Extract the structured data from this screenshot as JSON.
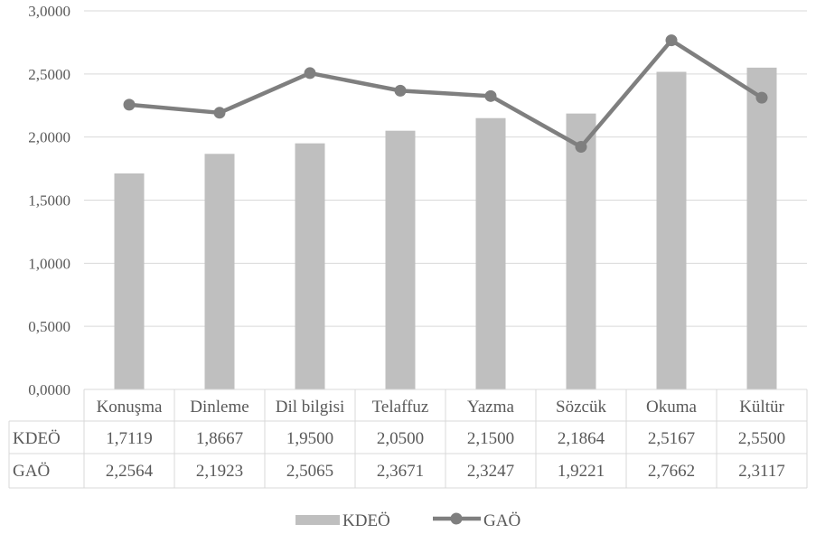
{
  "chart_data": {
    "type": "bar",
    "categories": [
      "Konuşma",
      "Dinleme",
      "Dil bilgisi",
      "Telaffuz",
      "Yazma",
      "Sözcük",
      "Okuma",
      "Kültür"
    ],
    "series": [
      {
        "name": "KDEÖ",
        "type": "bar",
        "color": "#bfbfbf",
        "values": [
          1.7119,
          1.8667,
          1.95,
          2.05,
          2.15,
          2.1864,
          2.5167,
          2.55
        ],
        "labels": [
          "1,7119",
          "1,8667",
          "1,9500",
          "2,0500",
          "2,1500",
          "2,1864",
          "2,5167",
          "2,5500"
        ]
      },
      {
        "name": "GAÖ",
        "type": "line",
        "color": "#7f7f7f",
        "values": [
          2.2564,
          2.1923,
          2.5065,
          2.3671,
          2.3247,
          1.9221,
          2.7662,
          2.3117
        ],
        "labels": [
          "2,2564",
          "2,1923",
          "2,5065",
          "2,3671",
          "2,3247",
          "1,9221",
          "2,7662",
          "2,3117"
        ]
      }
    ],
    "ylim": [
      0,
      3
    ],
    "yticks": [
      0,
      0.5,
      1,
      1.5,
      2,
      2.5,
      3
    ],
    "ytick_labels": [
      "0,0000",
      "0,5000",
      "1,0000",
      "1,5000",
      "2,0000",
      "2,5000",
      "3,0000"
    ],
    "grid": true,
    "data_table": true,
    "legend_position": "bottom"
  }
}
